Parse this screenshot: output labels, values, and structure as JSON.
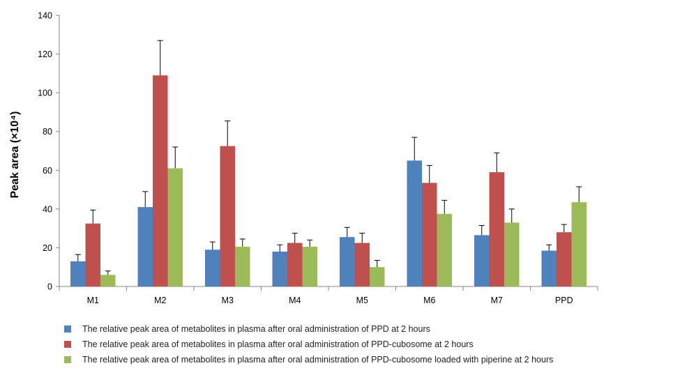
{
  "chart_data": {
    "type": "bar",
    "categories": [
      "M1",
      "M2",
      "M3",
      "M4",
      "M5",
      "M6",
      "M7",
      "PPD"
    ],
    "ylabel": "Peak area (×10⁴)",
    "ylim": [
      0,
      140
    ],
    "yticks": [
      0,
      20,
      40,
      60,
      80,
      100,
      120,
      140
    ],
    "grid": false,
    "legend_position": "bottom",
    "series": [
      {
        "name": "The relative peak area of metabolites in plasma after oral administration of PPD at 2 hours",
        "color": "#4f81bd",
        "values": [
          13,
          41,
          19,
          18,
          25.5,
          65,
          26.5,
          18.5
        ],
        "errors": [
          3.5,
          8,
          4,
          3.5,
          5,
          12,
          5,
          3
        ]
      },
      {
        "name": "The relative peak area of metabolites in plasma after oral administration of PPD-cubosome at 2 hours",
        "color": "#c0504d",
        "values": [
          32.5,
          109,
          72.5,
          22.5,
          22.5,
          53.5,
          59,
          28
        ],
        "errors": [
          7,
          18,
          13,
          5,
          5,
          9,
          10,
          4
        ]
      },
      {
        "name": "The relative peak area of metabolites in plasma after oral administration of PPD-cubosome loaded with piperine at 2 hours",
        "color": "#9bbb59",
        "values": [
          6,
          61,
          20.5,
          20.5,
          10,
          37.5,
          33,
          43.5
        ],
        "errors": [
          2,
          11,
          4,
          3.5,
          3.5,
          7,
          7,
          8
        ]
      }
    ]
  }
}
